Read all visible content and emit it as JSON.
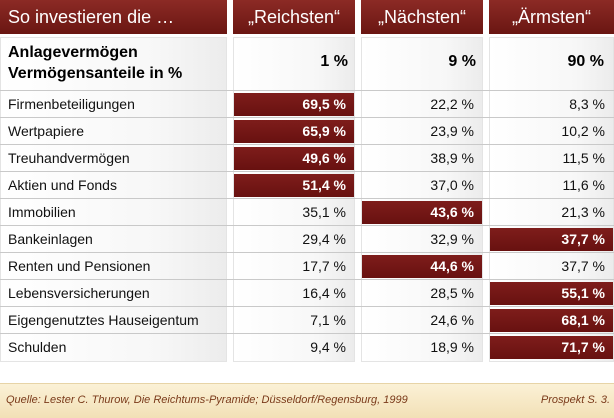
{
  "header": {
    "col0": "So investieren die …",
    "col1": "„Reichsten“",
    "col2": "„Nächsten“",
    "col3": "„Ärmsten“"
  },
  "subheader": {
    "line1": "Anlagevermögen",
    "line2": "Vermögensanteile in %",
    "v1": "1 %",
    "v2": "9 %",
    "v3": "90 %"
  },
  "rows": [
    {
      "label": "Firmenbeteiligungen",
      "v1": "69,5 %",
      "v2": "22,2 %",
      "v3": "8,3 %"
    },
    {
      "label": "Wertpapiere",
      "v1": "65,9 %",
      "v2": "23,9 %",
      "v3": "10,2 %"
    },
    {
      "label": "Treuhandvermögen",
      "v1": "49,6 %",
      "v2": "38,9 %",
      "v3": "11,5 %"
    },
    {
      "label": "Aktien und Fonds",
      "v1": "51,4 %",
      "v2": "37,0 %",
      "v3": "11,6 %"
    },
    {
      "label": "Immobilien",
      "v1": "35,1 %",
      "v2": "43,6 %",
      "v3": "21,3 %"
    },
    {
      "label": "Bankeinlagen",
      "v1": "29,4 %",
      "v2": "32,9 %",
      "v3": "37,7 %"
    },
    {
      "label": "Renten und Pensionen",
      "v1": "17,7 %",
      "v2": "44,6 %",
      "v3": "37,7 %"
    },
    {
      "label": "Lebensversicherungen",
      "v1": "16,4 %",
      "v2": "28,5 %",
      "v3": "55,1 %"
    },
    {
      "label": "Eigengenutztes Hauseigentum",
      "v1": "7,1 %",
      "v2": "24,6 %",
      "v3": "68,1 %"
    },
    {
      "label": "Schulden",
      "v1": "9,4 %",
      "v2": "18,9 %",
      "v3": "71,7 %"
    }
  ],
  "footer": {
    "source": "Quelle: Lester C. Thurow, Die Reichtums-Pyramide; Düsseldorf/Regensburg, 1999",
    "reference": "Prospekt S. 3."
  },
  "colors": {
    "header_bg": "#7a1d19",
    "highlight_bg": "#731614",
    "footer_bg": "#f6e7c3",
    "footer_text": "#7a3a1a"
  }
}
